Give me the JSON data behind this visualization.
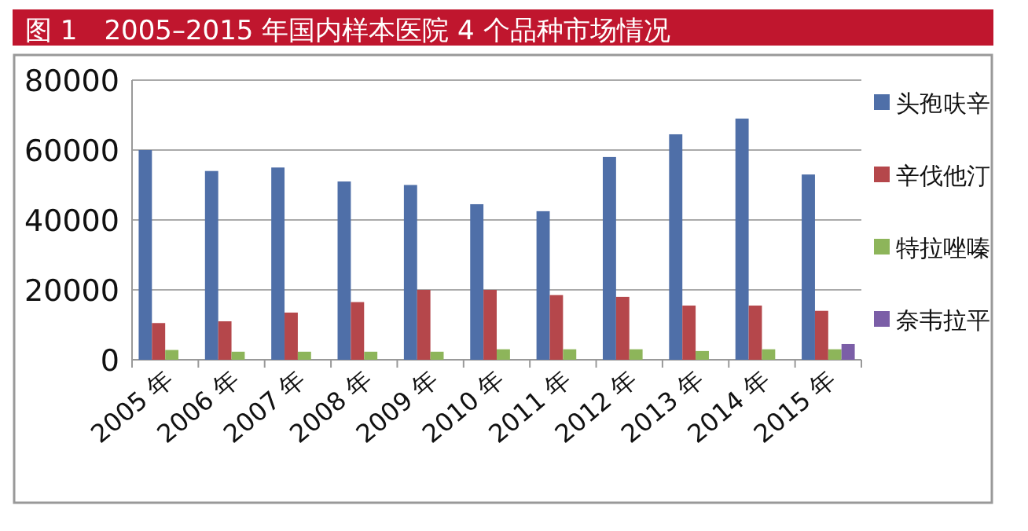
{
  "chart_data": {
    "type": "bar",
    "title": "图 1　2005–2015 年国内样本医院 4 个品种市场情况",
    "categories": [
      "2005 年",
      "2006 年",
      "2007 年",
      "2008 年",
      "2009 年",
      "2010 年",
      "2011 年",
      "2012 年",
      "2013 年",
      "2014 年",
      "2015 年"
    ],
    "series": [
      {
        "name": "头孢呋辛",
        "color": "#4f6fa8",
        "values": [
          60000,
          54000,
          55000,
          51000,
          50000,
          44500,
          42500,
          58000,
          64500,
          69000,
          53000
        ]
      },
      {
        "name": "辛伐他汀",
        "color": "#b5474b",
        "values": [
          10500,
          11000,
          13500,
          16500,
          20000,
          20000,
          18500,
          18000,
          15500,
          15500,
          14000
        ]
      },
      {
        "name": "特拉唑嗪",
        "color": "#8db55a",
        "values": [
          2800,
          2300,
          2300,
          2300,
          2300,
          3000,
          3000,
          3000,
          2500,
          3000,
          3000
        ]
      },
      {
        "name": "奈韦拉平",
        "color": "#7b5ea7",
        "values": [
          null,
          null,
          null,
          null,
          null,
          null,
          null,
          null,
          null,
          null,
          4500
        ]
      }
    ],
    "ylim": [
      0,
      80000
    ],
    "yticks": [
      0,
      20000,
      40000,
      60000,
      80000
    ],
    "grid": "y",
    "legend": "right"
  }
}
